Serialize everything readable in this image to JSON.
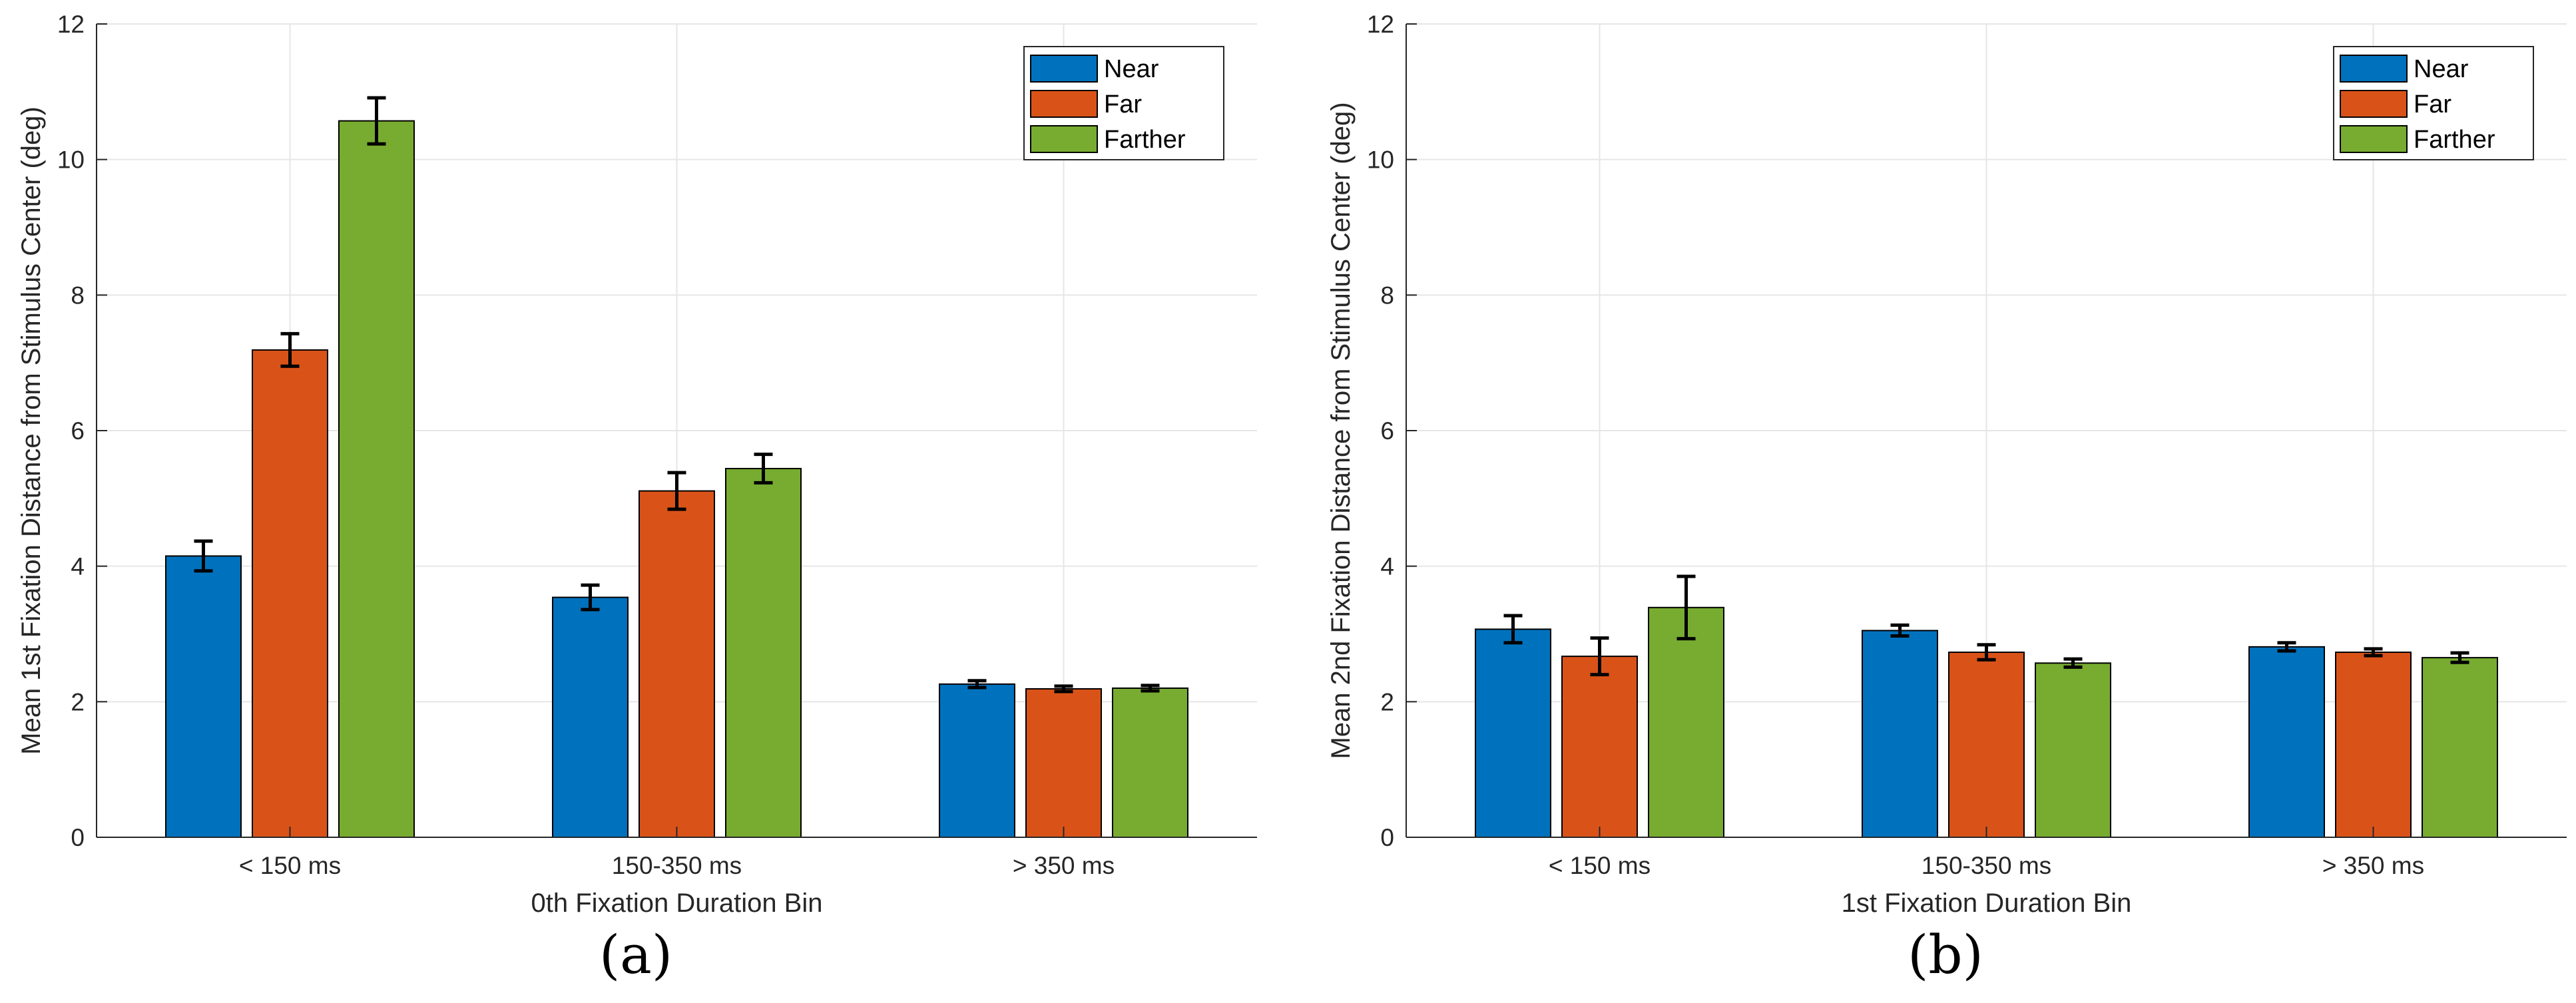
{
  "chart_data": [
    {
      "panel": "(a)",
      "type": "bar",
      "categories": [
        "< 150 ms",
        "150-350 ms",
        "> 350 ms"
      ],
      "series": [
        {
          "name": "Near",
          "color": "#0072BD",
          "values": [
            4.15,
            3.54,
            2.26
          ],
          "errors": [
            0.22,
            0.18,
            0.05
          ]
        },
        {
          "name": "Far",
          "color": "#D95319",
          "values": [
            7.19,
            5.11,
            2.19
          ],
          "errors": [
            0.24,
            0.27,
            0.04
          ]
        },
        {
          "name": "Farther",
          "color": "#77AC30",
          "values": [
            10.57,
            5.44,
            2.2
          ],
          "errors": [
            0.34,
            0.21,
            0.04
          ]
        }
      ],
      "xlabel": "0th Fixation Duration Bin",
      "ylabel": "Mean 1st Fixation Distance from Stimulus Center (deg)",
      "ylim": [
        0,
        12
      ],
      "yticks": [
        "0",
        "2",
        "4",
        "6",
        "8",
        "10",
        "12"
      ],
      "grid": true,
      "legend_position": "top-right"
    },
    {
      "panel": "(b)",
      "type": "bar",
      "categories": [
        "< 150 ms",
        "150-350 ms",
        "> 350 ms"
      ],
      "series": [
        {
          "name": "Near",
          "color": "#0072BD",
          "values": [
            3.07,
            3.05,
            2.81
          ],
          "errors": [
            0.2,
            0.08,
            0.06
          ]
        },
        {
          "name": "Far",
          "color": "#D95319",
          "values": [
            2.67,
            2.73,
            2.73
          ],
          "errors": [
            0.27,
            0.11,
            0.05
          ]
        },
        {
          "name": "Farther",
          "color": "#77AC30",
          "values": [
            3.39,
            2.57,
            2.65
          ],
          "errors": [
            0.46,
            0.06,
            0.07
          ]
        }
      ],
      "xlabel": "1st Fixation Duration Bin",
      "ylabel": "Mean 2nd Fixation Distance from Stimulus Center (deg)",
      "ylim": [
        0,
        12
      ],
      "yticks": [
        "0",
        "2",
        "4",
        "6",
        "8",
        "10",
        "12"
      ],
      "grid": true,
      "legend_position": "top-right"
    }
  ],
  "panel_labels": [
    "(a)",
    "(b)"
  ]
}
